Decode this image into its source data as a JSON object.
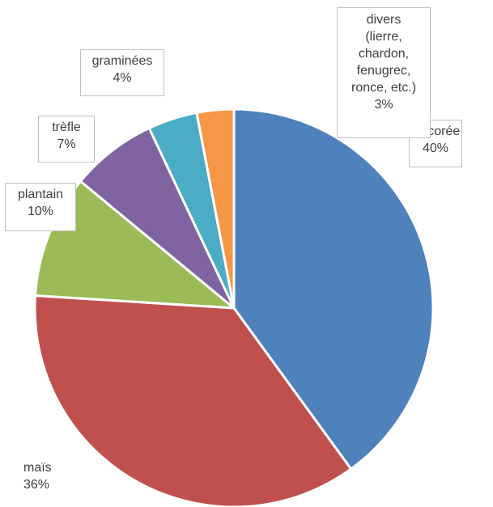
{
  "chart_data": {
    "type": "pie",
    "title": "",
    "start_angle_deg": 0,
    "direction": "clockwise",
    "slices": [
      {
        "name": "chicorée",
        "value": 40,
        "label": "40%",
        "color": "#4F81BD"
      },
      {
        "name": "maïs",
        "value": 36,
        "label": "36%",
        "color": "#C0504D"
      },
      {
        "name": "plantain",
        "value": 10,
        "label": "10%",
        "color": "#9BBB59"
      },
      {
        "name": "trèfle",
        "value": 7,
        "label": "7%",
        "color": "#8064A2"
      },
      {
        "name": "graminées",
        "value": 4,
        "label": "4%",
        "color": "#4BACC6"
      },
      {
        "name": "divers (lierre, chardon, fenugrec, ronce, etc.)",
        "value": 3,
        "label": "3%",
        "color": "#F79646",
        "name_lines": [
          "divers",
          "(lierre,",
          "chardon,",
          "fenugrec,",
          "ronce, etc.)"
        ]
      }
    ]
  }
}
